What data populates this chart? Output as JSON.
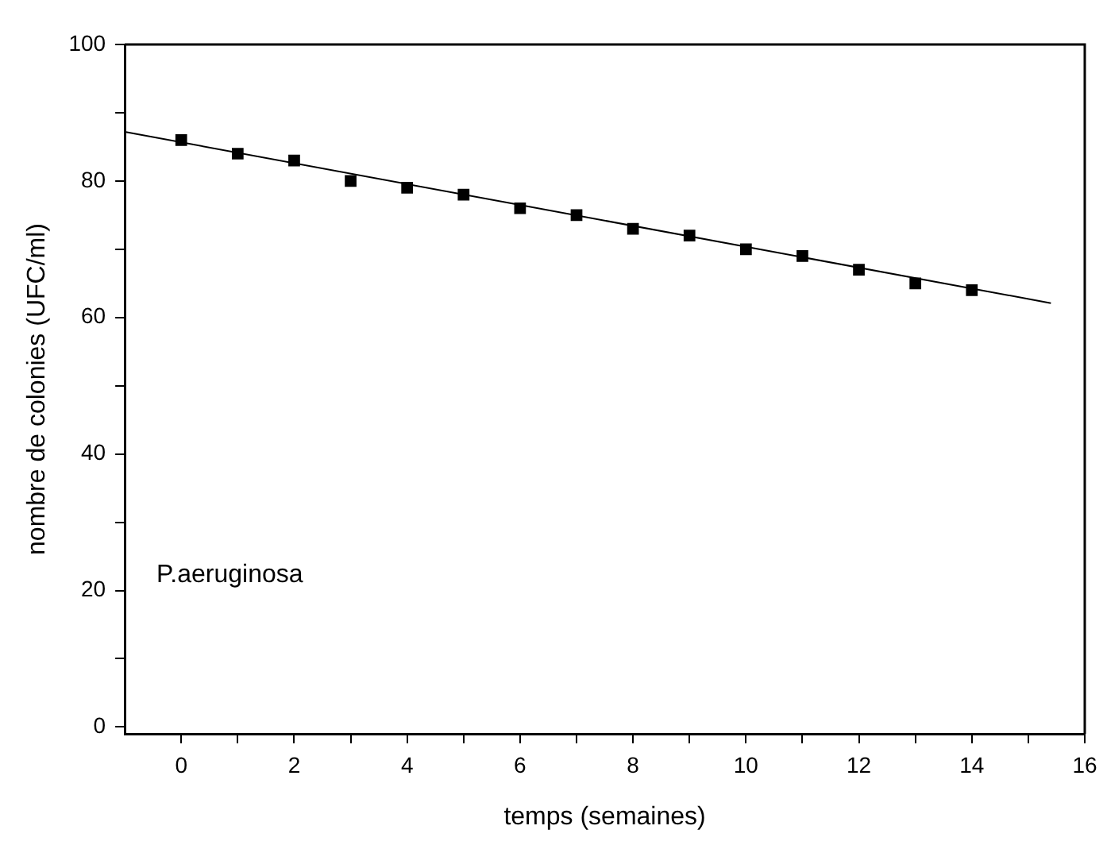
{
  "chart_data": {
    "type": "scatter",
    "xlabel": "temps (semaines)",
    "ylabel": "nombre de colonies (UFC/ml)",
    "x": [
      0,
      1,
      2,
      3,
      4,
      5,
      6,
      7,
      8,
      9,
      10,
      11,
      12,
      13,
      14
    ],
    "series": [
      {
        "color": "#000000",
        "marker": "square",
        "values": [
          86,
          84,
          83,
          80,
          79,
          78,
          76,
          75,
          73,
          72,
          70,
          69,
          67,
          65,
          64
        ]
      },
      {
        "type": "line",
        "color": "#000000",
        "marker": "none",
        "line_style": "solid",
        "x": [
          -1,
          15.4
        ],
        "values": [
          87.2,
          62.1
        ]
      }
    ],
    "xlim": [
      -1,
      16
    ],
    "ylim": [
      -1,
      100
    ],
    "xticks": [
      0,
      {
        "value": 1,
        "label": null
      },
      2,
      {
        "value": 3,
        "label": null
      },
      4,
      {
        "value": 5,
        "label": null
      },
      6,
      {
        "value": 7,
        "label": null
      },
      8,
      {
        "value": 9,
        "label": null
      },
      10,
      {
        "value": 11,
        "label": null
      },
      12,
      {
        "value": 13,
        "label": null
      },
      14,
      {
        "value": 15,
        "label": null
      },
      16
    ],
    "yticks": [
      0,
      {
        "value": 10,
        "label": null
      },
      20,
      {
        "value": 30,
        "label": null
      },
      40,
      {
        "value": 50,
        "label": null
      },
      60,
      {
        "value": 70,
        "label": null
      },
      80,
      {
        "value": 90,
        "label": null
      },
      100
    ],
    "grid": false,
    "legend": false,
    "annotations": [
      "P.aeruginosa"
    ]
  }
}
